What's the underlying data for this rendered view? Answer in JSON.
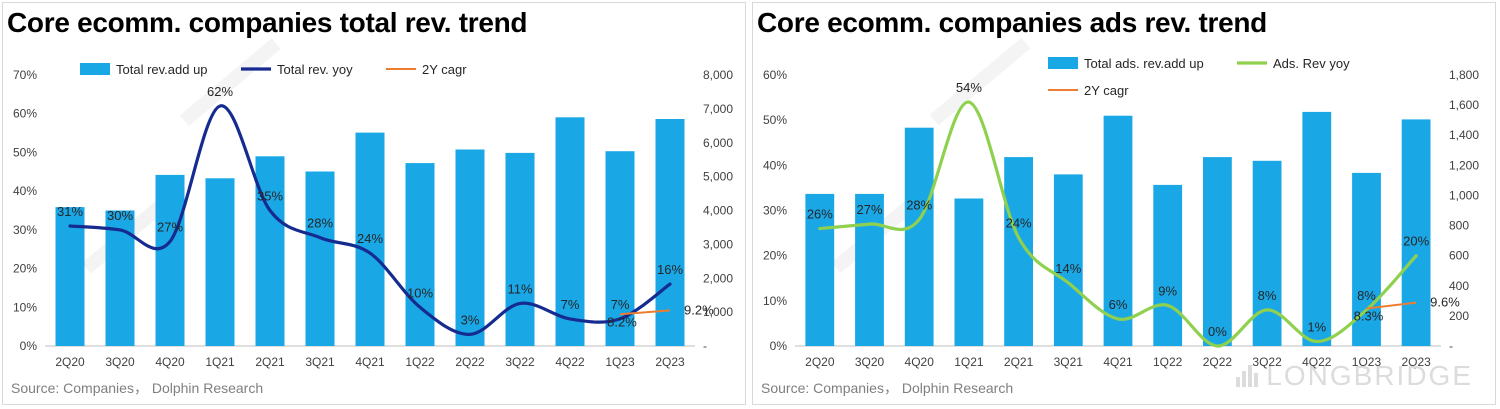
{
  "panels": [
    {
      "title": "Core ecomm. companies total rev. trend",
      "source": "Source: Companies， Dolphin Research",
      "chart_data": {
        "type": "bar+line",
        "categories": [
          "2Q20",
          "3Q20",
          "4Q20",
          "1Q21",
          "2Q21",
          "3Q21",
          "4Q21",
          "1Q22",
          "2Q22",
          "3Q22",
          "4Q22",
          "1Q23",
          "2Q23"
        ],
        "bar_series": {
          "name": "Total rev.add up",
          "color": "#1aa7e6",
          "values": [
            4100,
            4000,
            5050,
            4950,
            5600,
            5150,
            6300,
            5400,
            5800,
            5700,
            6750,
            5750,
            6700
          ]
        },
        "line_series": {
          "name": "Total rev. yoy",
          "color": "#152b8f",
          "values": [
            31,
            30,
            27,
            62,
            35,
            28,
            24,
            10,
            3,
            11,
            7,
            7,
            16
          ],
          "labels": [
            "31%",
            "30%",
            "27%",
            "62%",
            "35%",
            "28%",
            "24%",
            "10%",
            "3%",
            "11%",
            "7%",
            "7%",
            "16%"
          ]
        },
        "cagr_series": {
          "name": "2Y cagr",
          "color": "#ed7d31",
          "values": [
            8.2,
            9.2
          ],
          "labels": [
            "8.2%",
            "9.2%"
          ]
        },
        "y_left": {
          "min": 0,
          "max": 70,
          "ticks": [
            "0%",
            "10%",
            "20%",
            "30%",
            "40%",
            "50%",
            "60%",
            "70%"
          ]
        },
        "y_right": {
          "min": 0,
          "max": 8000,
          "ticks": [
            "-",
            "1,000",
            "2,000",
            "3,000",
            "4,000",
            "5,000",
            "6,000",
            "7,000",
            "8,000"
          ]
        }
      }
    },
    {
      "title": "Core ecomm. companies ads rev. trend",
      "source": "Source: Companies， Dolphin Research",
      "chart_data": {
        "type": "bar+line",
        "categories": [
          "2Q20",
          "3Q20",
          "4Q20",
          "1Q21",
          "2Q21",
          "3Q21",
          "4Q21",
          "1Q22",
          "2Q22",
          "3Q22",
          "4Q22",
          "1Q23",
          "2Q23"
        ],
        "bar_series": {
          "name": "Total ads. rev.add up",
          "color": "#1aa7e6",
          "values": [
            1010,
            1010,
            1450,
            980,
            1255,
            1140,
            1530,
            1070,
            1255,
            1230,
            1555,
            1150,
            1505
          ]
        },
        "line_series": {
          "name": "Ads. Rev yoy",
          "color": "#8fd14f",
          "values": [
            26,
            27,
            28,
            54,
            24,
            14,
            6,
            9,
            0,
            8,
            1,
            8,
            20
          ],
          "labels": [
            "26%",
            "27%",
            "28%",
            "54%",
            "24%",
            "14%",
            "6%",
            "9%",
            "0%",
            "8%",
            "1%",
            "8%",
            "20%"
          ]
        },
        "cagr_series": {
          "name": "2Y cagr",
          "color": "#ed7d31",
          "values": [
            8.3,
            9.6
          ],
          "labels": [
            "8.3%",
            "9.6%"
          ]
        },
        "y_left": {
          "min": 0,
          "max": 60,
          "ticks": [
            "0%",
            "10%",
            "20%",
            "30%",
            "40%",
            "50%",
            "60%"
          ]
        },
        "y_right": {
          "min": 0,
          "max": 1800,
          "ticks": [
            "-",
            "200",
            "400",
            "600",
            "800",
            "1,000",
            "1,200",
            "1,400",
            "1,600",
            "1,800"
          ]
        }
      }
    }
  ],
  "watermark": {
    "brand": "LONGBRIDGE"
  },
  "colors": {
    "bar": "#1aa7e6",
    "line_left": "#152b8f",
    "line_right": "#8fd14f",
    "cagr": "#ed7d31"
  }
}
